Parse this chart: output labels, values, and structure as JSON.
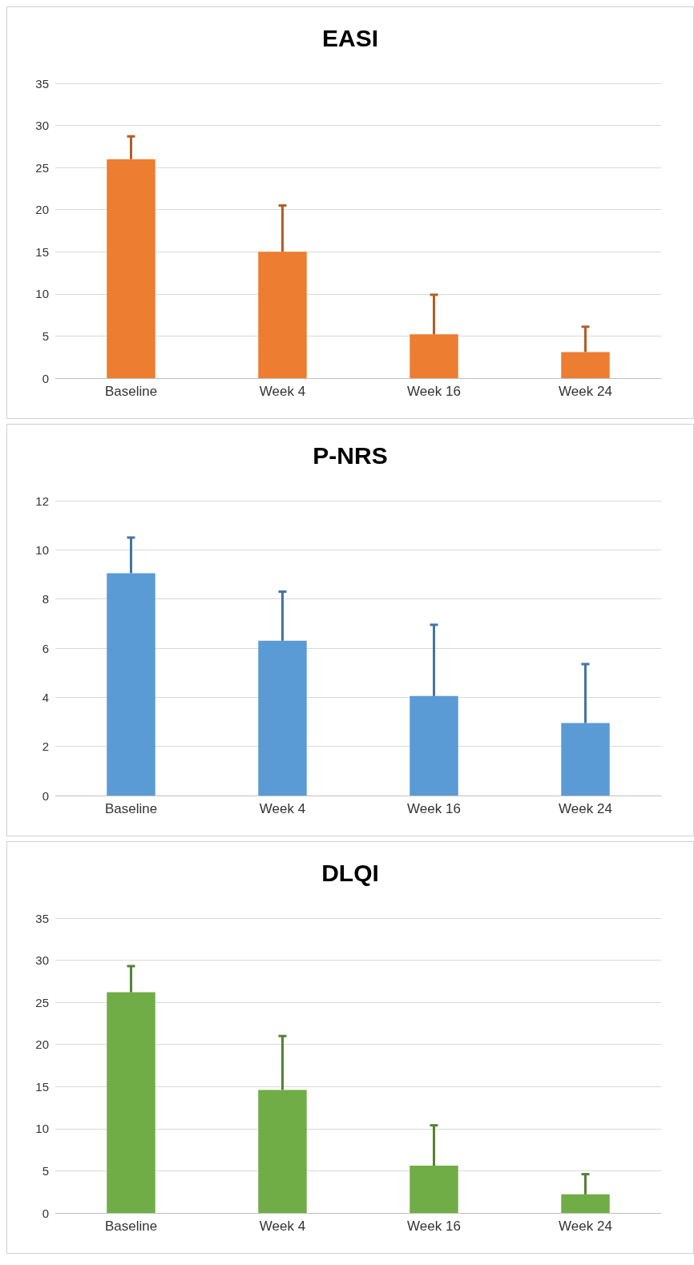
{
  "chart_data": [
    {
      "type": "bar",
      "title": "EASI",
      "categories": [
        "Baseline",
        "Week 4",
        "Week 16",
        "Week 24"
      ],
      "values": [
        26,
        15,
        5.2,
        3.1
      ],
      "errors": [
        [
          26,
          28.7
        ],
        [
          15,
          20.5
        ],
        [
          5.2,
          9.9
        ],
        [
          3.1,
          6.1
        ]
      ],
      "color": "#ed7d31",
      "ylim": [
        0,
        35
      ],
      "yticks": [
        0,
        5,
        10,
        15,
        20,
        25,
        30,
        35
      ],
      "grid": "y"
    },
    {
      "type": "bar",
      "title": "P-NRS",
      "categories": [
        "Baseline",
        "Week 4",
        "Week 16",
        "Week 24"
      ],
      "values": [
        9.05,
        6.3,
        4.05,
        2.95
      ],
      "errors": [
        [
          9.05,
          10.5
        ],
        [
          6.3,
          8.3
        ],
        [
          4.05,
          6.95
        ],
        [
          2.95,
          5.35
        ]
      ],
      "color": "#5b9bd5",
      "ylim": [
        0,
        12
      ],
      "yticks": [
        0,
        2,
        4,
        6,
        8,
        10,
        12
      ],
      "grid": "y"
    },
    {
      "type": "bar",
      "title": "DLQI",
      "categories": [
        "Baseline",
        "Week 4",
        "Week 16",
        "Week 24"
      ],
      "values": [
        26.2,
        14.6,
        5.6,
        2.2
      ],
      "errors": [
        [
          26.2,
          29.3
        ],
        [
          14.6,
          21
        ],
        [
          5.6,
          10.4
        ],
        [
          2.2,
          4.6
        ]
      ],
      "color": "#70ad47",
      "ylim": [
        0,
        35
      ],
      "yticks": [
        0,
        5,
        10,
        15,
        20,
        25,
        30,
        35
      ],
      "grid": "y"
    }
  ]
}
